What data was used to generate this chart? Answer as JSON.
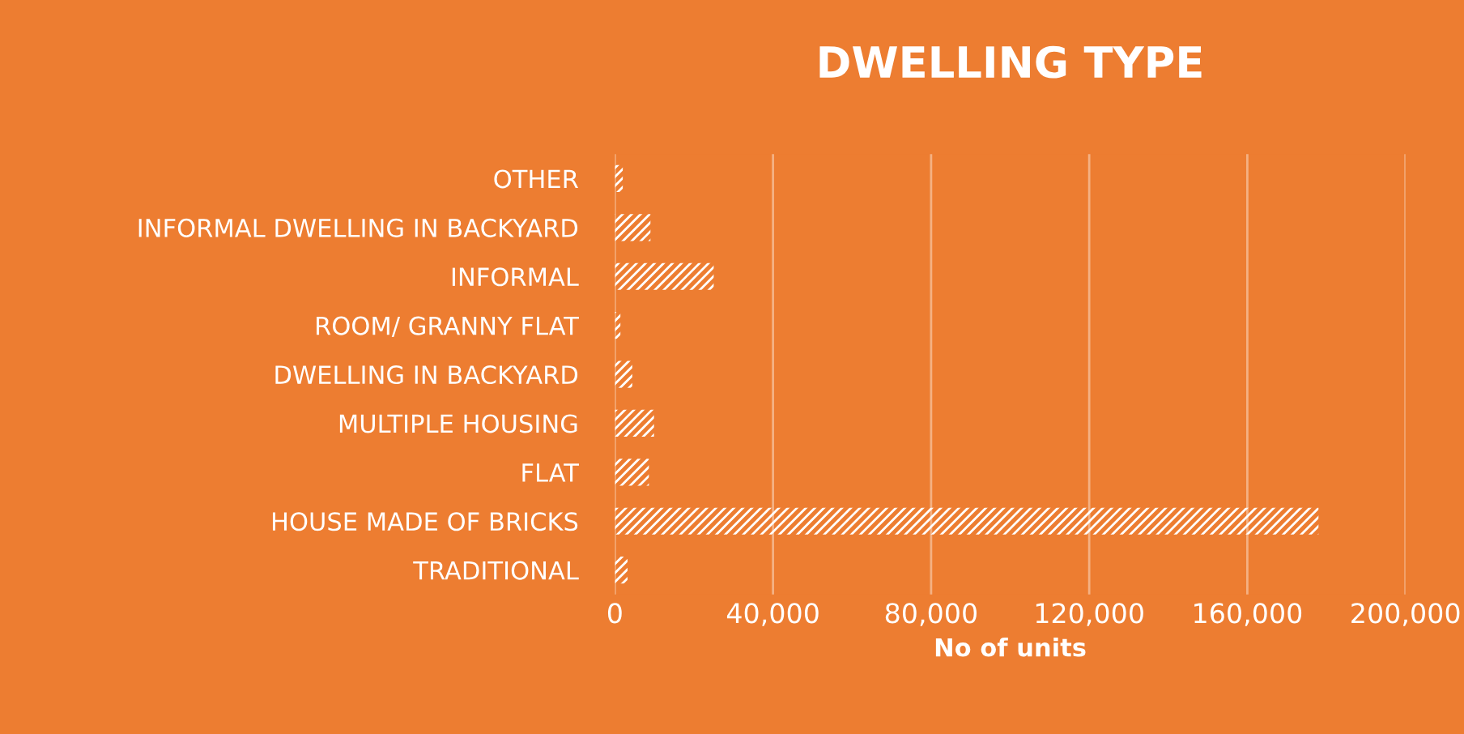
{
  "chart_data": {
    "type": "bar",
    "orientation": "horizontal",
    "title": "DWELLING TYPE",
    "xlabel": "No of units",
    "categories": [
      "OTHER",
      "INFORMAL DWELLING IN BACKYARD",
      "INFORMAL",
      "ROOM/ GRANNY FLAT",
      "DWELLING IN BACKYARD",
      "MULTIPLE HOUSING",
      "FLAT",
      "HOUSE MADE OF BRICKS",
      "TRADITIONAL"
    ],
    "values": [
      2000,
      9000,
      25000,
      1400,
      4400,
      9900,
      8600,
      178000,
      3200
    ],
    "color": "#ffffff",
    "xlim": [
      0,
      200000
    ],
    "xticks": [
      {
        "value": 0,
        "label": "0"
      },
      {
        "value": 40000,
        "label": "40,000"
      },
      {
        "value": 80000,
        "label": "80,000"
      },
      {
        "value": 120000,
        "label": "120,000"
      },
      {
        "value": 160000,
        "label": "160,000"
      },
      {
        "value": 200000,
        "label": "200,000"
      }
    ],
    "grid": "x"
  }
}
